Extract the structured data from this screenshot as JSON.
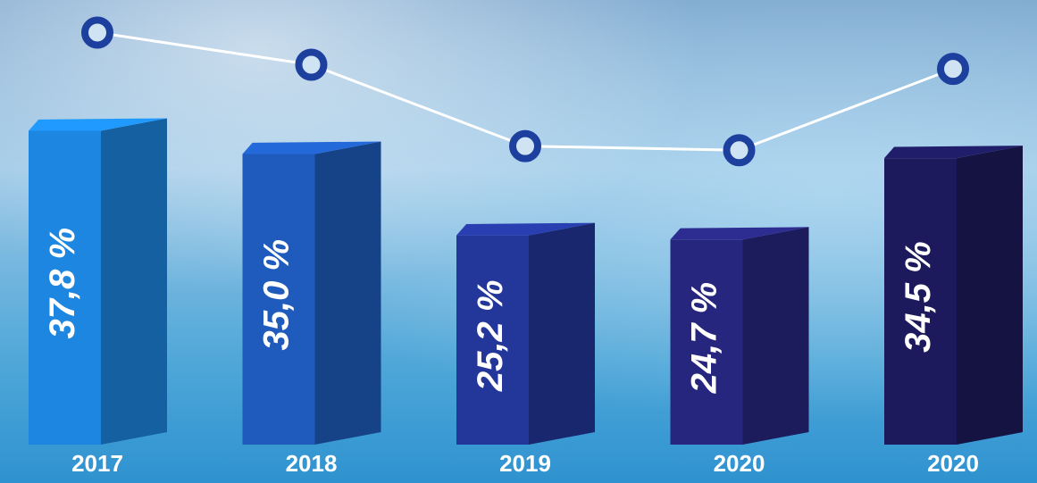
{
  "chart_data": {
    "type": "bar3d-line",
    "categories": [
      "2017",
      "2018",
      "2019",
      "2020",
      "2020"
    ],
    "values": [
      37.8,
      35.0,
      25.2,
      24.7,
      34.5
    ],
    "value_labels": [
      "37,8 %",
      "35,0 %",
      "25,2 %",
      "24,7 %",
      "34,5 %"
    ],
    "colors": [
      "#1c86e0",
      "#1f5bbd",
      "#23369a",
      "#27267e",
      "#1c1a5c"
    ],
    "line_color": "#ffffff",
    "marker_color": "#1d3f9e"
  }
}
